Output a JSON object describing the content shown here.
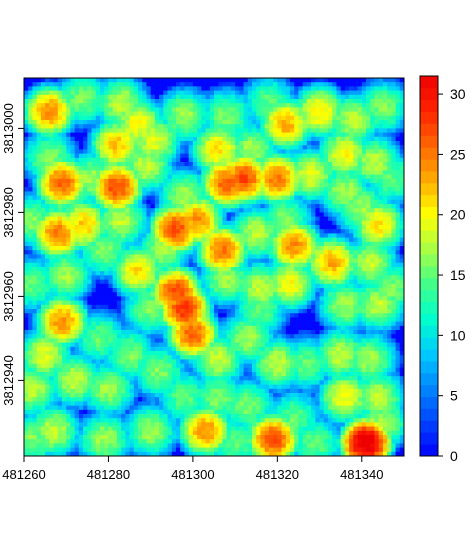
{
  "chart_data": {
    "type": "heatmap",
    "title": "",
    "xlabel": "",
    "ylabel": "",
    "x_ticks": [
      481260,
      481280,
      481300,
      481320,
      481340
    ],
    "y_ticks": [
      3812940,
      3812960,
      3812980,
      3813000
    ],
    "xlim": [
      481260,
      481350
    ],
    "ylim": [
      3812922,
      3813012
    ],
    "colorbar": {
      "ticks": [
        0,
        5,
        10,
        15,
        20,
        25,
        30
      ],
      "range": [
        0,
        31.5
      ],
      "colors": [
        "#0000ff",
        "#0044ff",
        "#0088ff",
        "#00ccff",
        "#00ffcc",
        "#44ff88",
        "#aaff44",
        "#ffff00",
        "#ffaa00",
        "#ff6600",
        "#ff2200",
        "#ee0000"
      ]
    },
    "clusters": [
      [
        481266,
        3813004,
        22
      ],
      [
        481274,
        3813007,
        14
      ],
      [
        481283,
        3813006,
        16
      ],
      [
        481287,
        3813001,
        18
      ],
      [
        481282,
        3812996,
        20
      ],
      [
        481291,
        3812997,
        17
      ],
      [
        481298,
        3813003,
        15
      ],
      [
        481308,
        3813003,
        14
      ],
      [
        481318,
        3813006,
        13
      ],
      [
        481322,
        3813001,
        21
      ],
      [
        481330,
        3813004,
        19
      ],
      [
        481338,
        3813002,
        16
      ],
      [
        481345,
        3813005,
        14
      ],
      [
        481336,
        3812994,
        18
      ],
      [
        481343,
        3812992,
        16
      ],
      [
        481314,
        3812995,
        15
      ],
      [
        481306,
        3812995,
        19
      ],
      [
        481312,
        3812988,
        25
      ],
      [
        481308,
        3812987,
        24
      ],
      [
        481320,
        3812988,
        23
      ],
      [
        481328,
        3812989,
        17
      ],
      [
        481336,
        3812985,
        15
      ],
      [
        481347,
        3812988,
        13
      ],
      [
        481269,
        3812987,
        24
      ],
      [
        481266,
        3812993,
        14
      ],
      [
        481282,
        3812986,
        25
      ],
      [
        481276,
        3812988,
        15
      ],
      [
        481289,
        3812991,
        16
      ],
      [
        481298,
        3812984,
        15
      ],
      [
        481301,
        3812978,
        22
      ],
      [
        481296,
        3812976,
        25
      ],
      [
        481293,
        3812971,
        15
      ],
      [
        481283,
        3812978,
        16
      ],
      [
        481274,
        3812977,
        20
      ],
      [
        481268,
        3812975,
        23
      ],
      [
        481262,
        3812978,
        14
      ],
      [
        481279,
        3812971,
        14
      ],
      [
        481287,
        3812966,
        19
      ],
      [
        481307,
        3812971,
        23
      ],
      [
        481315,
        3812975,
        16
      ],
      [
        481322,
        3812978,
        14
      ],
      [
        481324,
        3812972,
        22
      ],
      [
        481333,
        3812968,
        21
      ],
      [
        481342,
        3812968,
        16
      ],
      [
        481344,
        3812977,
        19
      ],
      [
        481340,
        3812981,
        15
      ],
      [
        481270,
        3812965,
        15
      ],
      [
        481262,
        3812963,
        13
      ],
      [
        481298,
        3812957,
        26
      ],
      [
        481296,
        3812961,
        25
      ],
      [
        481300,
        3812951,
        24
      ],
      [
        481290,
        3812957,
        14
      ],
      [
        481308,
        3812964,
        15
      ],
      [
        481316,
        3812962,
        16
      ],
      [
        481323,
        3812963,
        18
      ],
      [
        481336,
        3812958,
        15
      ],
      [
        481344,
        3812958,
        16
      ],
      [
        481269,
        3812954,
        22
      ],
      [
        481278,
        3812950,
        13
      ],
      [
        481265,
        3812946,
        17
      ],
      [
        481262,
        3812938,
        16
      ],
      [
        481272,
        3812940,
        16
      ],
      [
        481280,
        3812938,
        15
      ],
      [
        481285,
        3812946,
        14
      ],
      [
        481292,
        3812942,
        14
      ],
      [
        481298,
        3812936,
        13
      ],
      [
        481306,
        3812945,
        16
      ],
      [
        481313,
        3812950,
        15
      ],
      [
        481320,
        3812944,
        16
      ],
      [
        481327,
        3812944,
        13
      ],
      [
        481335,
        3812946,
        16
      ],
      [
        481342,
        3812945,
        15
      ],
      [
        481313,
        3812934,
        14
      ],
      [
        481324,
        3812931,
        13
      ],
      [
        481306,
        3812936,
        14
      ],
      [
        481336,
        3812936,
        18
      ],
      [
        481344,
        3812936,
        16
      ],
      [
        481262,
        3812926,
        14
      ],
      [
        481267,
        3812928,
        16
      ],
      [
        481279,
        3812926,
        15
      ],
      [
        481290,
        3812928,
        15
      ],
      [
        481303,
        3812928,
        22
      ],
      [
        481319,
        3812926,
        25
      ],
      [
        481310,
        3812925,
        13
      ],
      [
        481341,
        3812925,
        31
      ],
      [
        481345,
        3812930,
        15
      ],
      [
        481329,
        3812925,
        13
      ],
      [
        481347,
        3812962,
        14
      ],
      [
        481316,
        3812957,
        13
      ]
    ]
  }
}
